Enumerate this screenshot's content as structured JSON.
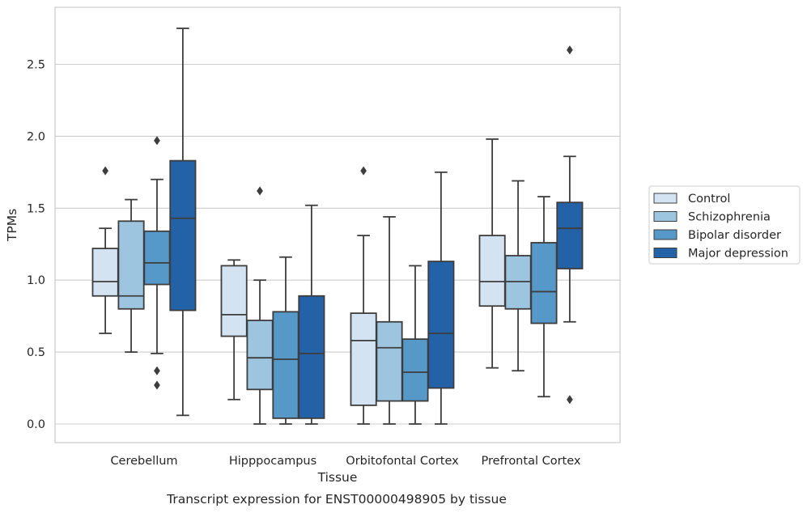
{
  "chart_data": {
    "type": "boxplot",
    "caption": "Transcript expression for ENST00000498905 by tissue",
    "xlabel": "Tissue",
    "ylabel": "TPMs",
    "ylim": [
      -0.13,
      2.88
    ],
    "yticks": [
      0.0,
      0.5,
      1.0,
      1.5,
      2.0,
      2.5
    ],
    "ytick_labels": [
      "0.0",
      "0.5",
      "1.0",
      "1.5",
      "2.0",
      "2.5"
    ],
    "grid": "horizontal",
    "legend_position": "right",
    "categories": [
      "Cerebellum",
      "Hipppocampus",
      "Orbitofontal Cortex",
      "Prefrontal Cortex"
    ],
    "series": [
      {
        "name": "Control",
        "color": "#d4e3f2",
        "boxes": [
          {
            "whislo": 0.63,
            "q1": 0.89,
            "med": 0.99,
            "q3": 1.22,
            "whishi": 1.36,
            "fliers": [
              1.76
            ]
          },
          {
            "whislo": 0.17,
            "q1": 0.61,
            "med": 0.76,
            "q3": 1.1,
            "whishi": 1.14,
            "fliers": []
          },
          {
            "whislo": 0.0,
            "q1": 0.13,
            "med": 0.58,
            "q3": 0.77,
            "whishi": 1.31,
            "fliers": [
              1.76
            ]
          },
          {
            "whislo": 0.39,
            "q1": 0.82,
            "med": 0.99,
            "q3": 1.31,
            "whishi": 1.98,
            "fliers": []
          }
        ]
      },
      {
        "name": "Schizophrenia",
        "color": "#9dc5df",
        "boxes": [
          {
            "whislo": 0.5,
            "q1": 0.8,
            "med": 0.89,
            "q3": 1.41,
            "whishi": 1.56,
            "fliers": []
          },
          {
            "whislo": 0.0,
            "q1": 0.24,
            "med": 0.46,
            "q3": 0.72,
            "whishi": 1.0,
            "fliers": [
              1.62
            ]
          },
          {
            "whislo": 0.0,
            "q1": 0.16,
            "med": 0.53,
            "q3": 0.71,
            "whishi": 1.44,
            "fliers": []
          },
          {
            "whislo": 0.37,
            "q1": 0.8,
            "med": 0.99,
            "q3": 1.17,
            "whishi": 1.69,
            "fliers": []
          }
        ]
      },
      {
        "name": "Bipolar disorder",
        "color": "#5699c8",
        "boxes": [
          {
            "whislo": 0.49,
            "q1": 0.97,
            "med": 1.12,
            "q3": 1.34,
            "whishi": 1.7,
            "fliers": [
              1.97,
              0.37,
              0.27
            ]
          },
          {
            "whislo": 0.0,
            "q1": 0.04,
            "med": 0.45,
            "q3": 0.78,
            "whishi": 1.16,
            "fliers": []
          },
          {
            "whislo": 0.0,
            "q1": 0.16,
            "med": 0.36,
            "q3": 0.59,
            "whishi": 1.1,
            "fliers": []
          },
          {
            "whislo": 0.19,
            "q1": 0.7,
            "med": 0.92,
            "q3": 1.26,
            "whishi": 1.58,
            "fliers": []
          }
        ]
      },
      {
        "name": "Major depression",
        "color": "#2462a8",
        "boxes": [
          {
            "whislo": 0.06,
            "q1": 0.79,
            "med": 1.43,
            "q3": 1.83,
            "whishi": 2.75,
            "fliers": []
          },
          {
            "whislo": 0.0,
            "q1": 0.04,
            "med": 0.49,
            "q3": 0.89,
            "whishi": 1.52,
            "fliers": []
          },
          {
            "whislo": 0.0,
            "q1": 0.25,
            "med": 0.63,
            "q3": 1.13,
            "whishi": 1.75,
            "fliers": []
          },
          {
            "whislo": 0.71,
            "q1": 1.08,
            "med": 1.36,
            "q3": 1.54,
            "whishi": 1.86,
            "fliers": [
              2.6,
              0.17
            ]
          }
        ]
      }
    ]
  }
}
